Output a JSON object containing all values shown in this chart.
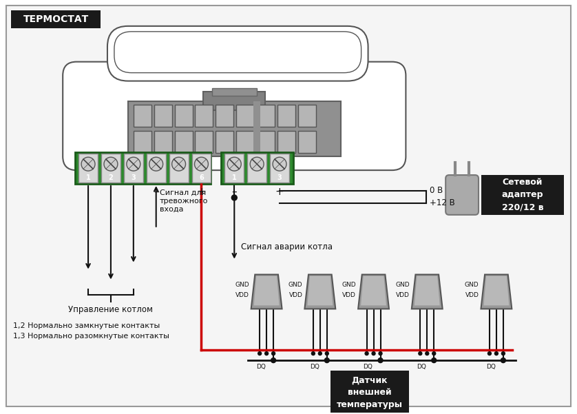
{
  "bg_color": "#ffffff",
  "outer_border_color": "#aaaaaa",
  "title_text": "ТЕРМОСТАТ",
  "title_bg": "#1a1a1a",
  "title_fg": "#ffffff",
  "green_color": "#2d8a2d",
  "green_dark": "#1a5a1a",
  "terminal_bg": "#d8d8d8",
  "terminal_border": "#888888",
  "screw_bg": "#cccccc",
  "screw_line": "#444444",
  "device_fill": "#ffffff",
  "device_outline": "#555555",
  "connector_fill": "#909090",
  "connector_outline": "#666666",
  "connector_slot_fill": "#b8b8b8",
  "connector_slot_outline": "#555555",
  "connector_top_fill": "#808080",
  "wire_dark": "#111111",
  "wire_red": "#cc0000",
  "adapter_fill": "#aaaaaa",
  "adapter_outline": "#777777",
  "sensor_fill": "#909090",
  "sensor_dark": "#606060",
  "label_color": "#111111",
  "dot_color": "#111111",
  "label_boiler_control": "Управление котлом",
  "label_12": "1,2 Нормально замкнутые контакты",
  "label_13": "1,3 Нормально разомкнутые контакты",
  "label_signal_alarm_in": "Сигнал для\nтревожного\nвхода",
  "label_boiler_alarm": "Сигнал аварии котла",
  "label_sensor": "Датчик\nвнешней\nтемпературы",
  "label_adapter": "Сетевой\nадаптер\n220/12 в",
  "label_0v": "0 В",
  "label_12v": "+12 В",
  "label_minus": "–",
  "label_plus": "+",
  "label_gnd": "GND",
  "label_vdd": "VDD",
  "label_dq": "DQ"
}
